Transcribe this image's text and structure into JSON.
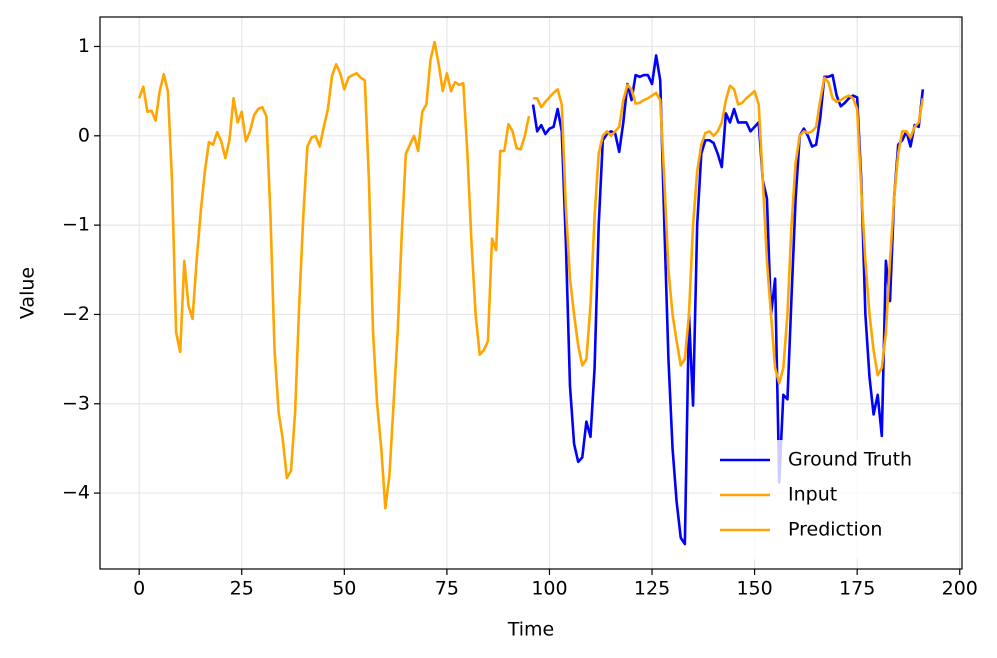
{
  "chart_data": {
    "type": "line",
    "xlabel": "Time",
    "ylabel": "Value",
    "xlim": [
      -9.55,
      200.55
    ],
    "ylim": [
      -4.85,
      1.33
    ],
    "xticks": [
      0,
      25,
      50,
      75,
      100,
      125,
      150,
      175,
      200
    ],
    "yticks": [
      {
        "value": -4,
        "label": "−4"
      },
      {
        "value": -3,
        "label": "−3"
      },
      {
        "value": -2,
        "label": "−2"
      },
      {
        "value": -1,
        "label": "−1"
      },
      0,
      1
    ],
    "grid": true,
    "legend": "lower right",
    "series": [
      {
        "name": "Ground Truth",
        "color": "#0000ff",
        "x": [
          96,
          97,
          98,
          99,
          100,
          101,
          102,
          103,
          104,
          105,
          106,
          107,
          108,
          109,
          110,
          111,
          112,
          113,
          114,
          115,
          116,
          117,
          118,
          119,
          120,
          121,
          122,
          123,
          124,
          125,
          126,
          127,
          128,
          129,
          130,
          131,
          132,
          133,
          134,
          135,
          136,
          137,
          138,
          139,
          140,
          141,
          142,
          143,
          144,
          145,
          146,
          147,
          148,
          149,
          150,
          151,
          152,
          153,
          154,
          155,
          156,
          157,
          158,
          159,
          160,
          161,
          162,
          163,
          164,
          165,
          166,
          167,
          168,
          169,
          170,
          171,
          172,
          173,
          174,
          175,
          176,
          177,
          178,
          179,
          180,
          181,
          182,
          183,
          184,
          185,
          186,
          187,
          188,
          189,
          190,
          191
        ],
        "values": [
          0.35,
          0.05,
          0.12,
          0.02,
          0.08,
          0.1,
          0.3,
          0.05,
          -1.2,
          -2.8,
          -3.45,
          -3.65,
          -3.6,
          -3.2,
          -3.37,
          -2.6,
          -1.0,
          -0.05,
          0.02,
          0.05,
          0.03,
          -0.18,
          0.15,
          0.58,
          0.4,
          0.68,
          0.66,
          0.68,
          0.68,
          0.58,
          0.9,
          0.62,
          -1.0,
          -2.5,
          -3.5,
          -4.1,
          -4.5,
          -4.57,
          -2.0,
          -3.02,
          -1.0,
          -0.2,
          -0.05,
          -0.05,
          -0.08,
          -0.2,
          -0.35,
          0.25,
          0.15,
          0.3,
          0.15,
          0.15,
          0.15,
          0.05,
          0.1,
          0.15,
          -0.5,
          -0.7,
          -2.0,
          -1.6,
          -3.88,
          -2.9,
          -2.95,
          -1.8,
          -0.7,
          0.0,
          0.08,
          0.0,
          -0.12,
          -0.1,
          0.2,
          0.66,
          0.66,
          0.68,
          0.45,
          0.33,
          0.37,
          0.42,
          0.45,
          0.43,
          -0.5,
          -2.0,
          -2.7,
          -3.12,
          -2.9,
          -3.36,
          -1.4,
          -1.85,
          -0.7,
          -0.1,
          -0.05,
          0.05,
          -0.12,
          0.12,
          0.1,
          0.52
        ]
      },
      {
        "name": "Input",
        "color": "#ffa500",
        "x": [
          0,
          1,
          2,
          3,
          4,
          5,
          6,
          7,
          8,
          9,
          10,
          11,
          12,
          13,
          14,
          15,
          16,
          17,
          18,
          19,
          20,
          21,
          22,
          23,
          24,
          25,
          26,
          27,
          28,
          29,
          30,
          31,
          32,
          33,
          34,
          35,
          36,
          37,
          38,
          39,
          40,
          41,
          42,
          43,
          44,
          45,
          46,
          47,
          48,
          49,
          50,
          51,
          52,
          53,
          54,
          55,
          56,
          57,
          58,
          59,
          60,
          61,
          62,
          63,
          64,
          65,
          66,
          67,
          68,
          69,
          70,
          71,
          72,
          73,
          74,
          75,
          76,
          77,
          78,
          79,
          80,
          81,
          82,
          83,
          84,
          85,
          86,
          87,
          88,
          89,
          90,
          91,
          92,
          93,
          94,
          95
        ],
        "values": [
          0.42,
          0.55,
          0.27,
          0.28,
          0.17,
          0.5,
          0.69,
          0.5,
          -0.5,
          -2.2,
          -2.42,
          -1.4,
          -1.9,
          -2.05,
          -1.4,
          -0.85,
          -0.4,
          -0.07,
          -0.1,
          0.04,
          -0.06,
          -0.25,
          -0.05,
          0.42,
          0.15,
          0.27,
          -0.06,
          0.05,
          0.23,
          0.3,
          0.32,
          0.22,
          -0.9,
          -2.4,
          -3.1,
          -3.4,
          -3.83,
          -3.75,
          -3.1,
          -1.9,
          -0.9,
          -0.12,
          -0.02,
          0.0,
          -0.12,
          0.1,
          0.3,
          0.67,
          0.8,
          0.7,
          0.52,
          0.65,
          0.68,
          0.7,
          0.65,
          0.62,
          -0.5,
          -2.2,
          -3.0,
          -3.5,
          -4.17,
          -3.8,
          -3.0,
          -2.2,
          -1.1,
          -0.2,
          -0.1,
          0.0,
          -0.17,
          0.27,
          0.35,
          0.85,
          1.05,
          0.8,
          0.5,
          0.7,
          0.5,
          0.6,
          0.57,
          0.59,
          -0.2,
          -1.2,
          -2.0,
          -2.45,
          -2.4,
          -2.3,
          -1.15,
          -1.28,
          -0.17,
          -0.17,
          0.13,
          0.05,
          -0.14,
          -0.15,
          0.0,
          0.22
        ]
      },
      {
        "name": "Prediction",
        "color": "#ffa500",
        "x": [
          96,
          97,
          98,
          99,
          100,
          101,
          102,
          103,
          104,
          105,
          106,
          107,
          108,
          109,
          110,
          111,
          112,
          113,
          114,
          115,
          116,
          117,
          118,
          119,
          120,
          121,
          122,
          123,
          124,
          125,
          126,
          127,
          128,
          129,
          130,
          131,
          132,
          133,
          134,
          135,
          136,
          137,
          138,
          139,
          140,
          141,
          142,
          143,
          144,
          145,
          146,
          147,
          148,
          149,
          150,
          151,
          152,
          153,
          154,
          155,
          156,
          157,
          158,
          159,
          160,
          161,
          162,
          163,
          164,
          165,
          166,
          167,
          168,
          169,
          170,
          171,
          172,
          173,
          174,
          175,
          176,
          177,
          178,
          179,
          180,
          181,
          182,
          183,
          184,
          185,
          186,
          187,
          188,
          189,
          190,
          191
        ],
        "values": [
          0.42,
          0.42,
          0.32,
          0.38,
          0.43,
          0.48,
          0.52,
          0.35,
          -0.8,
          -1.6,
          -2.0,
          -2.35,
          -2.57,
          -2.5,
          -1.9,
          -0.9,
          -0.2,
          0.0,
          0.05,
          0.0,
          0.05,
          0.1,
          0.4,
          0.57,
          0.52,
          0.36,
          0.37,
          0.4,
          0.42,
          0.45,
          0.48,
          0.4,
          -0.5,
          -1.5,
          -2.0,
          -2.3,
          -2.57,
          -2.5,
          -2.0,
          -1.0,
          -0.4,
          -0.1,
          0.03,
          0.05,
          0.0,
          0.05,
          0.15,
          0.4,
          0.56,
          0.52,
          0.35,
          0.37,
          0.42,
          0.46,
          0.5,
          0.35,
          -0.5,
          -1.4,
          -2.0,
          -2.6,
          -2.77,
          -2.6,
          -2.0,
          -1.0,
          -0.3,
          0.0,
          0.05,
          0.03,
          0.05,
          0.1,
          0.4,
          0.65,
          0.6,
          0.42,
          0.38,
          0.4,
          0.43,
          0.45,
          0.42,
          0.3,
          -0.6,
          -1.4,
          -2.0,
          -2.4,
          -2.68,
          -2.6,
          -2.2,
          -1.4,
          -0.7,
          -0.2,
          0.05,
          0.05,
          -0.02,
          0.1,
          0.15,
          0.42
        ]
      }
    ]
  }
}
